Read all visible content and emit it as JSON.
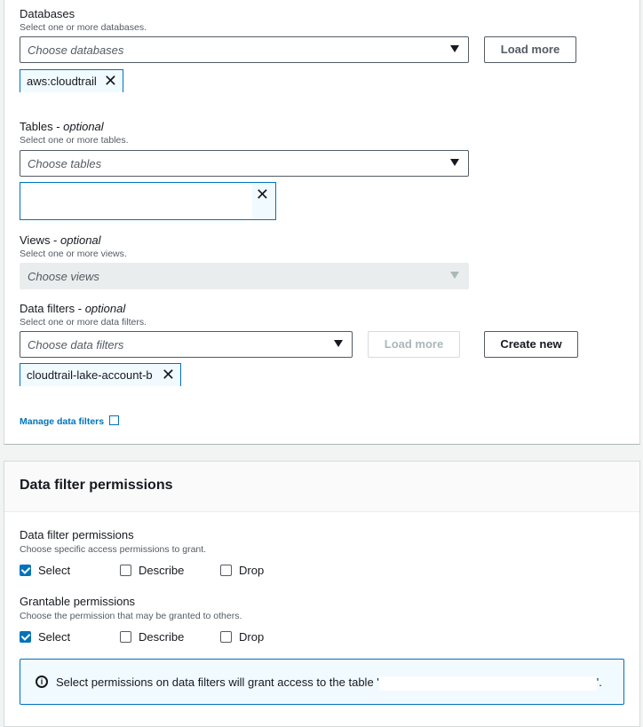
{
  "databases": {
    "label": "Databases",
    "desc": "Select one or more databases.",
    "placeholder": "Choose databases",
    "load_more": "Load more",
    "tokens": [
      "aws:cloudtrail"
    ]
  },
  "tables": {
    "label": "Tables - ",
    "optional": "optional",
    "desc": "Select one or more tables.",
    "placeholder": "Choose tables"
  },
  "views": {
    "label": "Views - ",
    "optional": "optional",
    "desc": "Select one or more views.",
    "placeholder": "Choose views"
  },
  "data_filters": {
    "label": "Data filters - ",
    "optional": "optional",
    "desc": "Select one or more data filters.",
    "placeholder": "Choose data filters",
    "load_more": "Load more",
    "create_new": "Create new",
    "tokens": [
      "cloudtrail-lake-account-b"
    ],
    "manage_link": "Manage data filters"
  },
  "permissions_section": {
    "title": "Data filter permissions",
    "perms": {
      "label": "Data filter permissions",
      "desc": "Choose specific access permissions to grant.",
      "options": [
        {
          "label": "Select",
          "checked": true
        },
        {
          "label": "Describe",
          "checked": false
        },
        {
          "label": "Drop",
          "checked": false
        }
      ]
    },
    "grantable": {
      "label": "Grantable permissions",
      "desc": "Choose the permission that may be granted to others.",
      "options": [
        {
          "label": "Select",
          "checked": true
        },
        {
          "label": "Describe",
          "checked": false
        },
        {
          "label": "Drop",
          "checked": false
        }
      ]
    },
    "info": {
      "text": "Select permissions on data filters will grant access to the table '",
      "suffix": "'."
    }
  },
  "colors": {
    "link": "#0073bb",
    "info_bg": "#f1faff",
    "info_border": "#0073bb"
  }
}
